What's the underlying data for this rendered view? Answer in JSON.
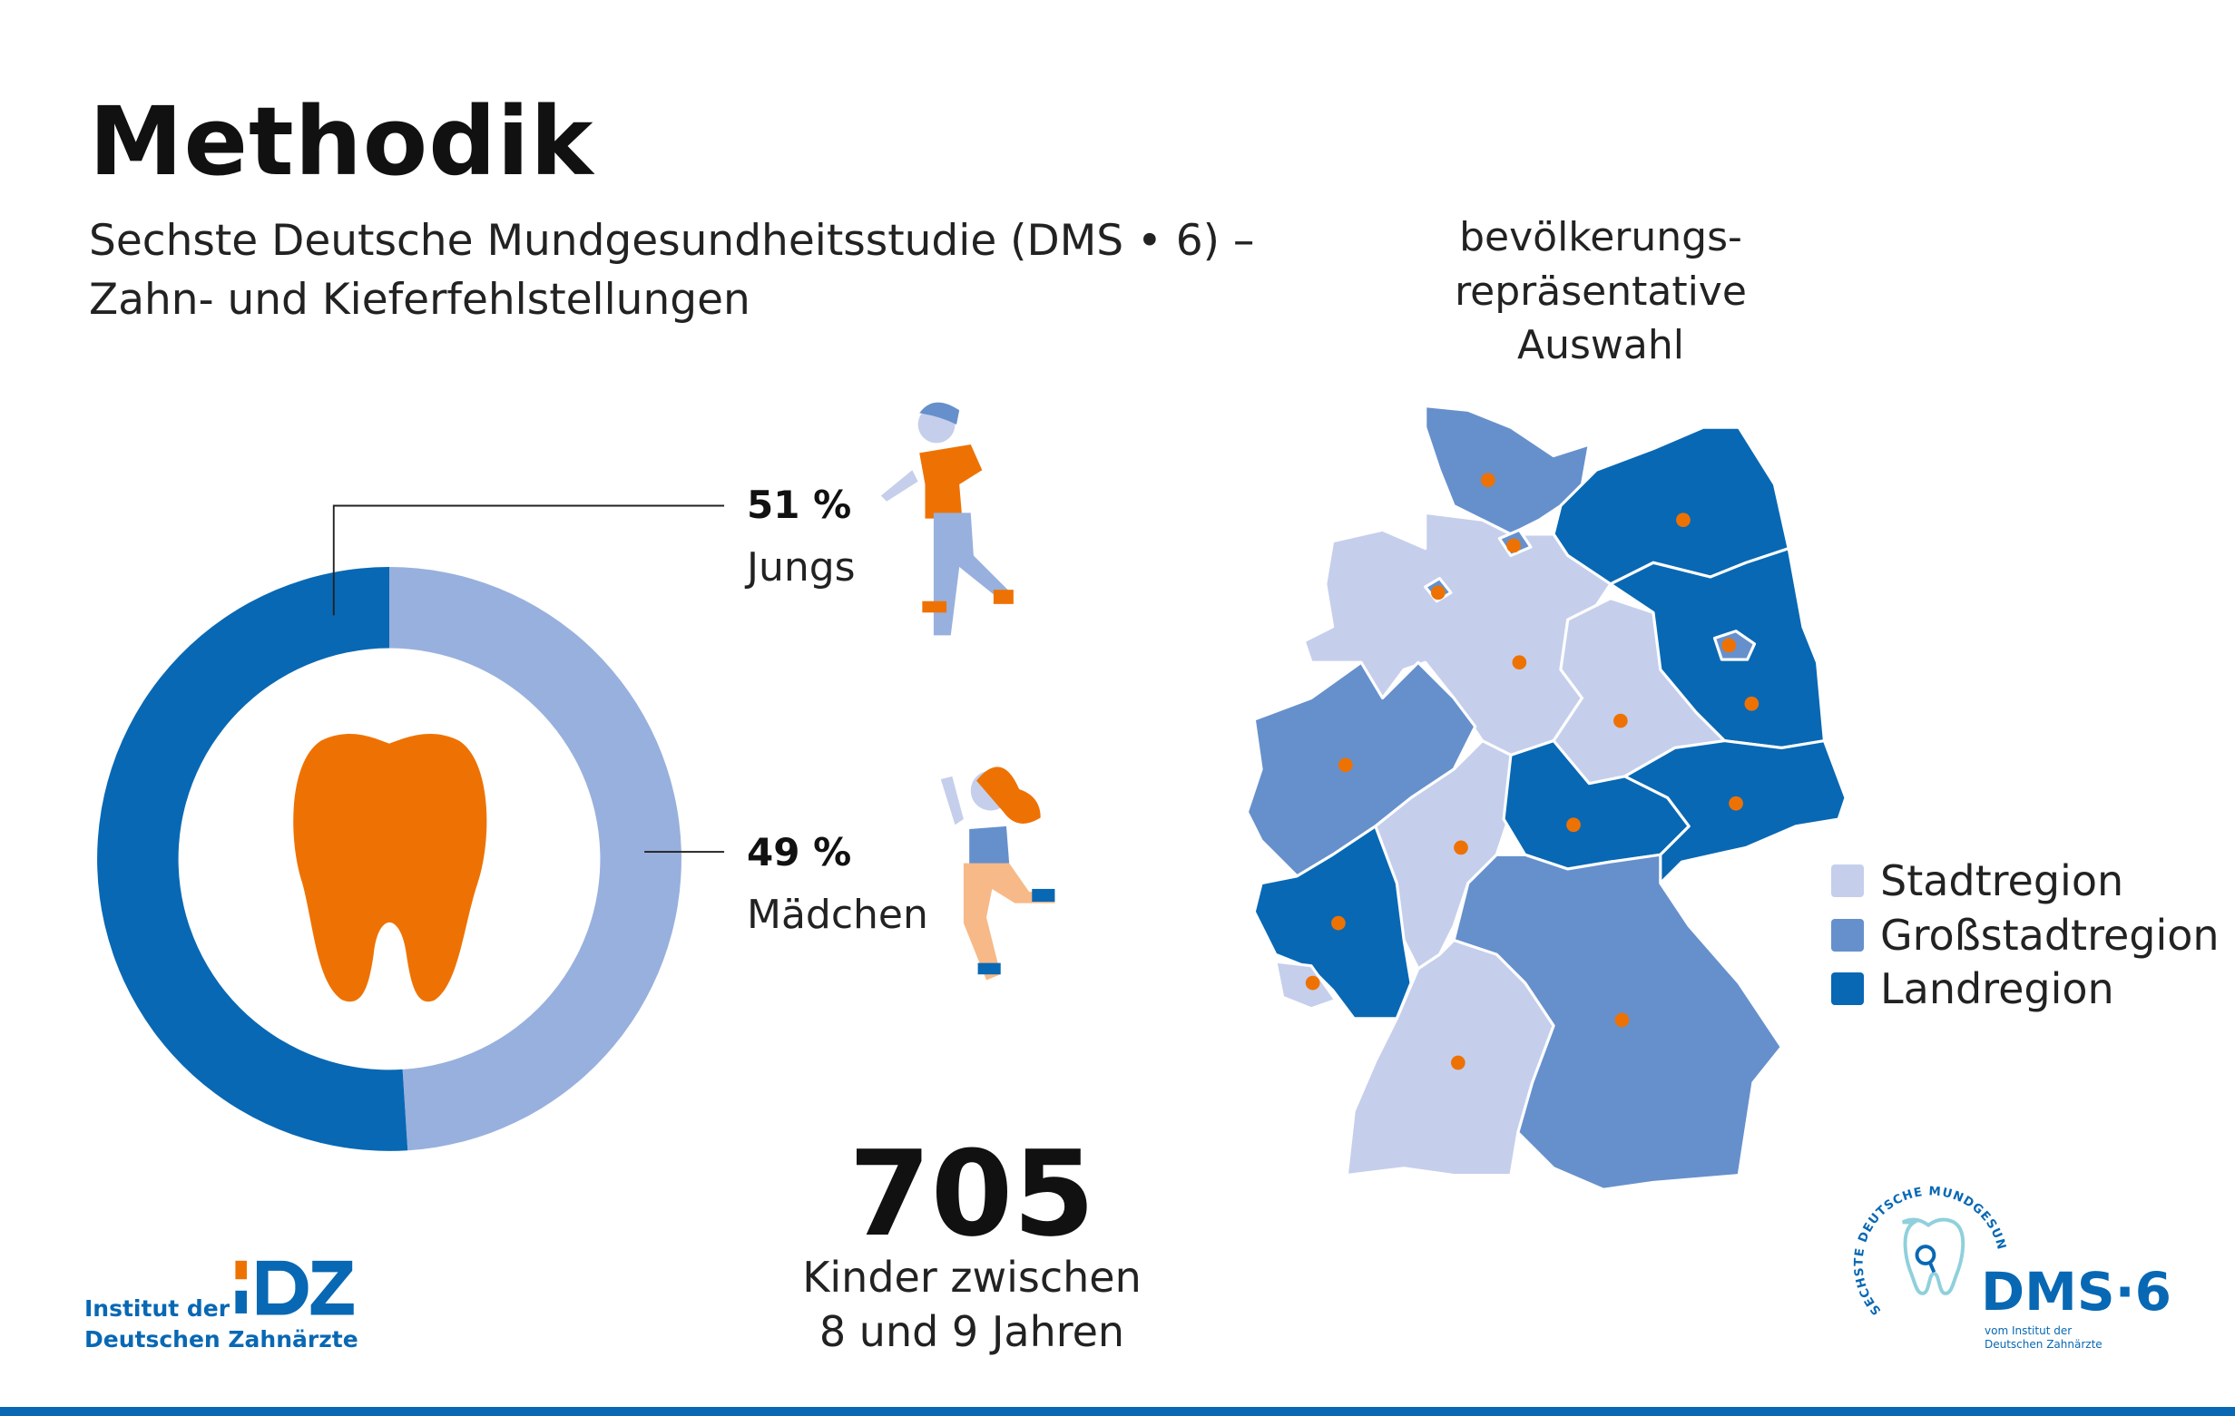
{
  "header": {
    "title": "Methodik",
    "subtitle_lines": [
      "Sechste Deutsche Mundgesundheitsstudie (DMS • 6) –",
      "Zahn- und Kieferfehlstellungen"
    ]
  },
  "donut": {
    "segments": [
      {
        "label": "Jungs",
        "value": 51,
        "pct_text": "51 %",
        "color": "#0868b4"
      },
      {
        "label": "Mädchen",
        "value": 49,
        "pct_text": "49 %",
        "color": "#98b0dd"
      }
    ],
    "center_icon": "tooth-icon",
    "center_color": "#ee7203"
  },
  "stat": {
    "number": "705",
    "caption_lines": [
      "Kinder zwischen",
      "8 und 9 Jahren"
    ]
  },
  "map": {
    "title_lines": [
      "bevölkerungs-",
      "repräsentative",
      "Auswahl"
    ],
    "legend": [
      {
        "label": "Stadtregion",
        "color": "#c5cfec"
      },
      {
        "label": "Großstadtregion",
        "color": "#6690cc"
      },
      {
        "label": "Landregion",
        "color": "#0868b4"
      }
    ],
    "marker_color": "#ee7203"
  },
  "logos": {
    "idz_line1": "Institut der",
    "idz_line2": "Deutschen Zahnärzte",
    "idz_mark": "IDZ",
    "dms_ring": "SECHSTE DEUTSCHE MUNDGESUNDHEITSSTUDIE",
    "dms_mark": "DMS·6",
    "dms_line1": "vom Institut der",
    "dms_line2": "Deutschen Zahnärzte"
  }
}
